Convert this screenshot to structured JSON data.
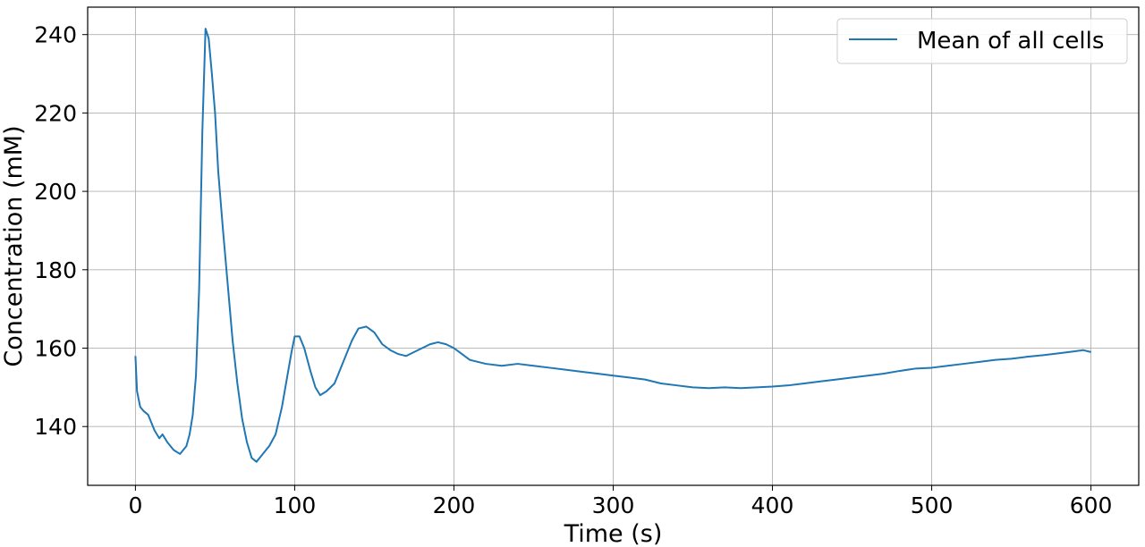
{
  "chart_data": {
    "type": "line",
    "title": "",
    "xlabel": "Time (s)",
    "ylabel": "Concentration (mM)",
    "xlim": [
      -30,
      630
    ],
    "ylim": [
      125,
      247
    ],
    "xticks": [
      0,
      100,
      200,
      300,
      400,
      500,
      600
    ],
    "yticks": [
      140,
      160,
      180,
      200,
      220,
      240
    ],
    "grid": true,
    "legend_position": "top-right",
    "series": [
      {
        "name": "Mean of all cells",
        "color": "#1f77b4",
        "points": [
          [
            0,
            158
          ],
          [
            1,
            149
          ],
          [
            3,
            145
          ],
          [
            5,
            144
          ],
          [
            8,
            143
          ],
          [
            12,
            139
          ],
          [
            15,
            137
          ],
          [
            17,
            138
          ],
          [
            20,
            136
          ],
          [
            24,
            134
          ],
          [
            28,
            133
          ],
          [
            30,
            134
          ],
          [
            32,
            135
          ],
          [
            34,
            138
          ],
          [
            36,
            143
          ],
          [
            38,
            153
          ],
          [
            40,
            175
          ],
          [
            42,
            215
          ],
          [
            44,
            241.5
          ],
          [
            46,
            239
          ],
          [
            48,
            230
          ],
          [
            50,
            220
          ],
          [
            52,
            205
          ],
          [
            55,
            190
          ],
          [
            58,
            176
          ],
          [
            61,
            162
          ],
          [
            64,
            151
          ],
          [
            67,
            142
          ],
          [
            70,
            136
          ],
          [
            73,
            132
          ],
          [
            76,
            131
          ],
          [
            80,
            133
          ],
          [
            84,
            135
          ],
          [
            88,
            138
          ],
          [
            92,
            145
          ],
          [
            95,
            152
          ],
          [
            98,
            159
          ],
          [
            100,
            163
          ],
          [
            103,
            163
          ],
          [
            106,
            160
          ],
          [
            110,
            154
          ],
          [
            113,
            150
          ],
          [
            116,
            148
          ],
          [
            120,
            149
          ],
          [
            125,
            151
          ],
          [
            128,
            154
          ],
          [
            132,
            158
          ],
          [
            136,
            162
          ],
          [
            140,
            165
          ],
          [
            145,
            165.5
          ],
          [
            150,
            164
          ],
          [
            155,
            161
          ],
          [
            160,
            159.5
          ],
          [
            165,
            158.5
          ],
          [
            170,
            158
          ],
          [
            175,
            159
          ],
          [
            180,
            160
          ],
          [
            185,
            161
          ],
          [
            190,
            161.5
          ],
          [
            195,
            161
          ],
          [
            200,
            160
          ],
          [
            205,
            158.5
          ],
          [
            210,
            157
          ],
          [
            220,
            156
          ],
          [
            230,
            155.5
          ],
          [
            240,
            156
          ],
          [
            250,
            155.5
          ],
          [
            260,
            155
          ],
          [
            270,
            154.5
          ],
          [
            280,
            154
          ],
          [
            290,
            153.5
          ],
          [
            300,
            153
          ],
          [
            310,
            152.5
          ],
          [
            320,
            152
          ],
          [
            330,
            151
          ],
          [
            340,
            150.5
          ],
          [
            350,
            150
          ],
          [
            360,
            149.8
          ],
          [
            370,
            150
          ],
          [
            380,
            149.8
          ],
          [
            390,
            150
          ],
          [
            400,
            150.2
          ],
          [
            410,
            150.5
          ],
          [
            420,
            151
          ],
          [
            430,
            151.5
          ],
          [
            440,
            152
          ],
          [
            450,
            152.5
          ],
          [
            460,
            153
          ],
          [
            470,
            153.5
          ],
          [
            480,
            154.2
          ],
          [
            490,
            154.8
          ],
          [
            500,
            155
          ],
          [
            510,
            155.5
          ],
          [
            520,
            156
          ],
          [
            530,
            156.5
          ],
          [
            540,
            157
          ],
          [
            550,
            157.3
          ],
          [
            560,
            157.8
          ],
          [
            570,
            158.2
          ],
          [
            580,
            158.7
          ],
          [
            590,
            159.2
          ],
          [
            595,
            159.5
          ],
          [
            600,
            159
          ]
        ]
      }
    ]
  }
}
